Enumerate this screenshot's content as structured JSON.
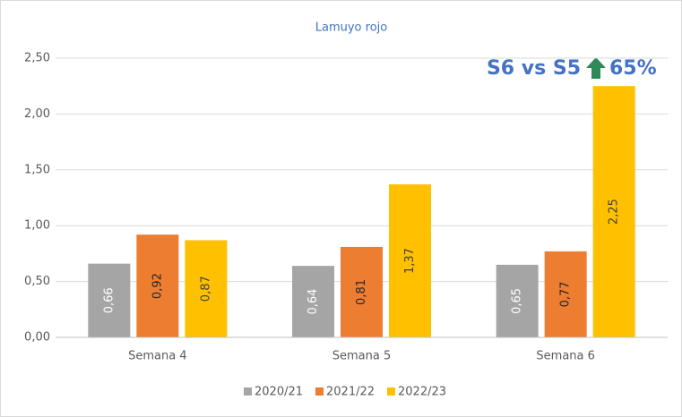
{
  "chart_data": {
    "type": "bar",
    "title": "Lamuyo rojo",
    "annotation": {
      "text": "S6 vs S5",
      "change": "65%"
    },
    "categories": [
      "Semana 4",
      "Semana 5",
      "Semana 6"
    ],
    "series": [
      {
        "name": "2020/21",
        "color": "#a5a5a5",
        "values": [
          0.66,
          0.64,
          0.65
        ],
        "value_labels": [
          "0,66",
          "0,64",
          "0,65"
        ]
      },
      {
        "name": "2021/22",
        "color": "#ed7d31",
        "values": [
          0.92,
          0.81,
          0.77
        ],
        "value_labels": [
          "0,92",
          "0,81",
          "0,77"
        ]
      },
      {
        "name": "2022/23",
        "color": "#ffc000",
        "values": [
          0.87,
          1.37,
          2.25
        ],
        "value_labels": [
          "0,87",
          "1,37",
          "2,25"
        ]
      }
    ],
    "ylim": [
      0,
      2.5
    ],
    "yticks": [
      {
        "value": 0,
        "label": "0,00"
      },
      {
        "value": 0.5,
        "label": "0,50"
      },
      {
        "value": 1,
        "label": "1,00"
      },
      {
        "value": 1.5,
        "label": "1,50"
      },
      {
        "value": 2,
        "label": "2,00"
      },
      {
        "value": 2.5,
        "label": "2,50"
      }
    ],
    "grid": true,
    "legend": "bottom"
  }
}
